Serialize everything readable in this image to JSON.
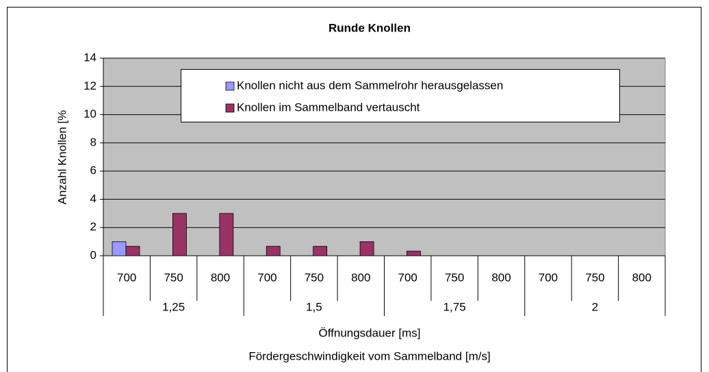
{
  "chart_data": {
    "type": "bar",
    "title": "Runde Knollen",
    "y_label": "Anzahl Knollen [%",
    "x_label": "Öffnungsdauer [ms]",
    "x_label_2": "Fördergeschwindigkeit vom Sammelband [m/s]",
    "categories": [
      "700",
      "750",
      "800",
      "700",
      "750",
      "800",
      "700",
      "750",
      "800",
      "700",
      "750",
      "800"
    ],
    "group_labels": [
      "1,25",
      "1,5",
      "1,75",
      "2"
    ],
    "series": [
      {
        "name": "Knollen nicht aus dem Sammelrohr herausgelassen",
        "color": "#9999ff",
        "values": [
          1,
          0,
          0,
          0,
          0,
          0,
          0,
          0,
          0,
          0,
          0,
          0
        ]
      },
      {
        "name": "Knollen im Sammelband vertauscht",
        "color": "#993366",
        "values": [
          0.67,
          3,
          3,
          0.67,
          0.67,
          1,
          0.33,
          0,
          0,
          0,
          0,
          0
        ]
      }
    ],
    "ylim": [
      0,
      14
    ],
    "yticks": [
      0,
      2,
      4,
      6,
      8,
      10,
      12,
      14
    ],
    "grid": true,
    "plot_background": "#c0c0c0"
  }
}
